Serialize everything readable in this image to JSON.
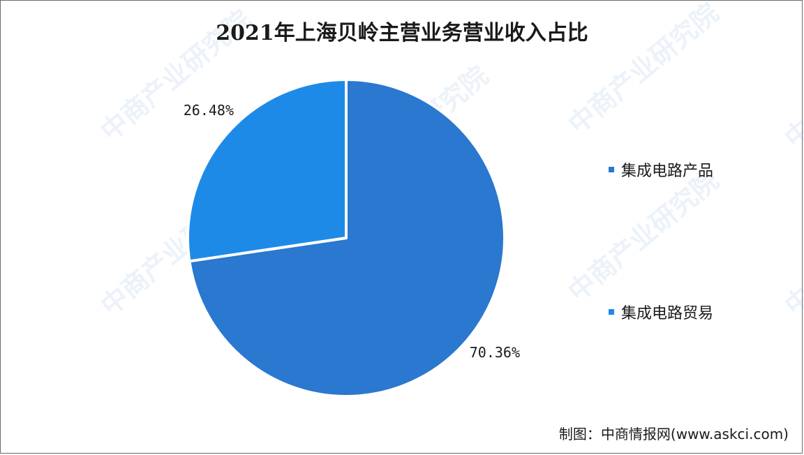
{
  "watermark_text": "中商产业研究院",
  "chart_data": {
    "type": "pie",
    "title": "2021年上海贝岭主营业务营业收入占比",
    "slices": [
      {
        "label": "集成电路产品",
        "value": 70.36,
        "display": "70.36%",
        "color": "#2a78cf"
      },
      {
        "label": "集成电路贸易",
        "value": 26.48,
        "display": "26.48%",
        "color": "#1e8ae8"
      }
    ],
    "legend_position": "right",
    "start_angle_deg": 0,
    "direction": "clockwise"
  },
  "source": "制图：中商情报网(www.askci.com)"
}
